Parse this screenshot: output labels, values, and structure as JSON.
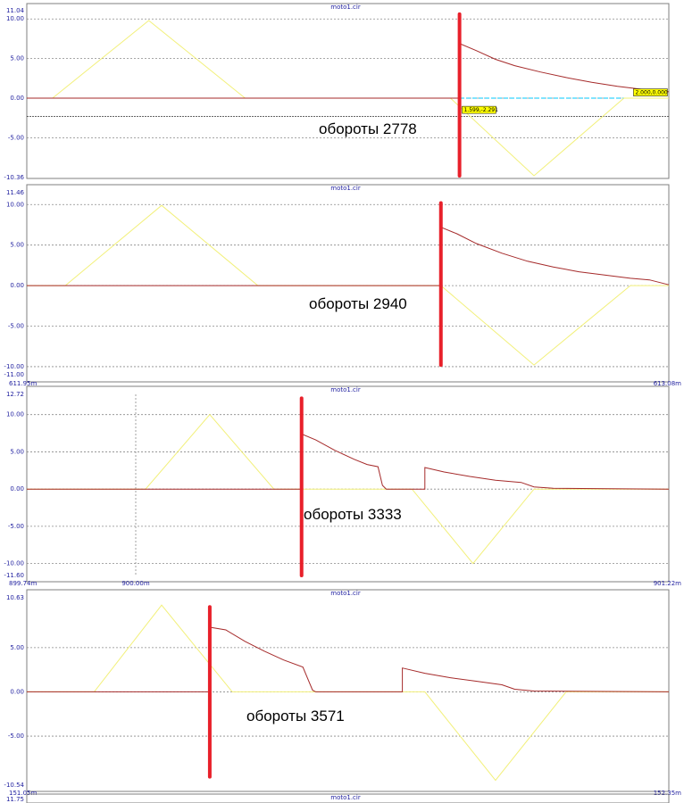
{
  "colors": {
    "background": "#ffffff",
    "frame": "#7f7f7f",
    "grid": "#8a8a8a",
    "axis_text": "#1f1f9f",
    "trace_triangle": "#f2f07a",
    "trace_decay": "#a52a2a",
    "marker": "#e8202a",
    "cursor_line": "#00c8ff",
    "cursor_label_bg": "#ffff00"
  },
  "chart_data": [
    {
      "type": "line",
      "title": "moto1.cir",
      "ylim": [
        -10.36,
        11.04
      ],
      "xlim": [
        0,
        100
      ],
      "ytick_labels": [
        "11.04",
        "10.00",
        "5.00",
        "0.00",
        "-5.00",
        "-10.36"
      ],
      "yticks": [
        11.04,
        10,
        5,
        0,
        -5,
        -10.36
      ],
      "x_labels": {
        "left": "",
        "right": "",
        "mid": ""
      },
      "grid": true,
      "annotation": "обороты  2778",
      "marker_x": 67.4,
      "marker_y_range": [
        -9.8,
        10.6
      ],
      "cursor": {
        "y": 0,
        "color": "cyan"
      },
      "hline": -2.291,
      "cursor_labels": [
        {
          "text": "1.599,-2.291",
          "x": 67.8,
          "y": -1.7
        },
        {
          "text": "2.000,0.000",
          "x": 94.5,
          "y": 0.5
        }
      ],
      "series": [
        {
          "color": "yellow",
          "points": [
            [
              0,
              0
            ],
            [
              4,
              0
            ],
            [
              19,
              9.8
            ],
            [
              34,
              0
            ],
            [
              66,
              0
            ],
            [
              79,
              -9.8
            ],
            [
              93,
              0
            ],
            [
              100,
              0
            ]
          ]
        },
        {
          "color": "red",
          "points": [
            [
              0,
              0
            ],
            [
              67.4,
              0
            ],
            [
              67.4,
              6.9
            ],
            [
              70,
              6.0
            ],
            [
              73,
              4.9
            ],
            [
              76,
              4.1
            ],
            [
              80,
              3.3
            ],
            [
              84,
              2.6
            ],
            [
              88,
              2.0
            ],
            [
              92,
              1.5
            ],
            [
              96,
              1.1
            ],
            [
              100,
              0.8
            ]
          ]
        }
      ]
    },
    {
      "type": "line",
      "title": "moto1.cir",
      "ylim": [
        -11.0,
        11.46
      ],
      "xlim": [
        0,
        100
      ],
      "ytick_labels": [
        "11.46",
        "10.00",
        "5.00",
        "0.00",
        "-5.00",
        "-10.00",
        "-11.00"
      ],
      "yticks": [
        11.46,
        10,
        5,
        0,
        -5,
        -10,
        -11.0
      ],
      "x_labels": {
        "left": "611.95m",
        "right": "613.08m",
        "mid": ""
      },
      "grid": true,
      "annotation": "обороты  2940",
      "marker_x": 64.5,
      "marker_y_range": [
        -9.8,
        10.2
      ],
      "series": [
        {
          "color": "yellow",
          "points": [
            [
              0,
              0
            ],
            [
              6,
              0
            ],
            [
              21,
              9.9
            ],
            [
              36,
              0
            ],
            [
              64.5,
              0
            ],
            [
              79,
              -9.8
            ],
            [
              94,
              0
            ],
            [
              100,
              0
            ]
          ]
        },
        {
          "color": "red",
          "points": [
            [
              0,
              0
            ],
            [
              64.5,
              0
            ],
            [
              64.5,
              7.2
            ],
            [
              67,
              6.4
            ],
            [
              70,
              5.2
            ],
            [
              74,
              4.0
            ],
            [
              78,
              3.0
            ],
            [
              82,
              2.3
            ],
            [
              86,
              1.7
            ],
            [
              90,
              1.3
            ],
            [
              94,
              0.9
            ],
            [
              97,
              0.7
            ],
            [
              100,
              0.1
            ]
          ]
        }
      ]
    },
    {
      "type": "line",
      "title": "moto1.cir",
      "ylim": [
        -11.6,
        12.72
      ],
      "xlim": [
        0,
        100
      ],
      "ytick_labels": [
        "12.72",
        "10.00",
        "5.00",
        "0.00",
        "-5.00",
        "-10.00",
        "-11.60"
      ],
      "yticks": [
        12.72,
        10,
        5,
        0,
        -5,
        -10,
        -11.6
      ],
      "x_labels": {
        "left": "899.74m",
        "right": "901.22m",
        "mid": "900.00m"
      },
      "grid": true,
      "annotation": "обороты  3333",
      "marker_x": 42.8,
      "marker_y_range": [
        -11.6,
        12.2
      ],
      "series": [
        {
          "color": "yellow",
          "points": [
            [
              0,
              0
            ],
            [
              18.5,
              0
            ],
            [
              28.5,
              10.0
            ],
            [
              38.5,
              0
            ],
            [
              60,
              0
            ],
            [
              69.5,
              -10.0
            ],
            [
              79,
              0
            ],
            [
              100,
              0
            ]
          ]
        },
        {
          "color": "red",
          "points": [
            [
              0,
              0
            ],
            [
              42.8,
              0
            ],
            [
              42.8,
              7.4
            ],
            [
              45,
              6.6
            ],
            [
              48,
              5.2
            ],
            [
              51,
              4.0
            ],
            [
              53,
              3.3
            ],
            [
              54.7,
              3.0
            ],
            [
              55.4,
              0.5
            ],
            [
              56,
              0
            ],
            [
              62,
              0
            ],
            [
              62,
              2.9
            ],
            [
              65,
              2.3
            ],
            [
              69,
              1.7
            ],
            [
              73,
              1.2
            ],
            [
              77,
              0.9
            ],
            [
              79,
              0.3
            ],
            [
              82,
              0.1
            ],
            [
              100,
              0
            ]
          ]
        }
      ]
    },
    {
      "type": "line",
      "title": "moto1.cir",
      "ylim": [
        -10.54,
        10.63
      ],
      "xlim": [
        0,
        100
      ],
      "ytick_labels": [
        "10.63",
        "5.00",
        "0.00",
        "-5.00",
        "-10.54"
      ],
      "yticks": [
        10.63,
        5,
        0,
        -5,
        -10.54
      ],
      "x_labels": {
        "left": "151.05m",
        "right": "152.35m",
        "mid": ""
      },
      "grid": true,
      "annotation": "обороты  3571",
      "marker_x": 28.5,
      "marker_y_range": [
        -9.6,
        9.6
      ],
      "series": [
        {
          "color": "yellow",
          "points": [
            [
              0,
              0
            ],
            [
              10.5,
              0
            ],
            [
              21,
              9.8
            ],
            [
              32,
              0
            ],
            [
              62,
              0
            ],
            [
              73,
              -10.0
            ],
            [
              84,
              0
            ],
            [
              100,
              0
            ]
          ]
        },
        {
          "color": "red",
          "points": [
            [
              0,
              0
            ],
            [
              28.5,
              0
            ],
            [
              28.5,
              7.3
            ],
            [
              31,
              7.0
            ],
            [
              34,
              5.7
            ],
            [
              37,
              4.6
            ],
            [
              40,
              3.6
            ],
            [
              43,
              2.8
            ],
            [
              44.5,
              0.2
            ],
            [
              45,
              0
            ],
            [
              58.5,
              0
            ],
            [
              58.5,
              2.7
            ],
            [
              62,
              2.1
            ],
            [
              66,
              1.6
            ],
            [
              70,
              1.2
            ],
            [
              74,
              0.8
            ],
            [
              76,
              0.3
            ],
            [
              79,
              0.1
            ],
            [
              100,
              0
            ]
          ]
        }
      ]
    },
    {
      "type": "line",
      "title": "moto1.cir",
      "ylim": [
        0,
        11.75
      ],
      "ytick_labels": [
        "11.75"
      ],
      "x_labels": {
        "left": "",
        "right": "",
        "mid": ""
      },
      "grid": false,
      "partial": true
    }
  ]
}
